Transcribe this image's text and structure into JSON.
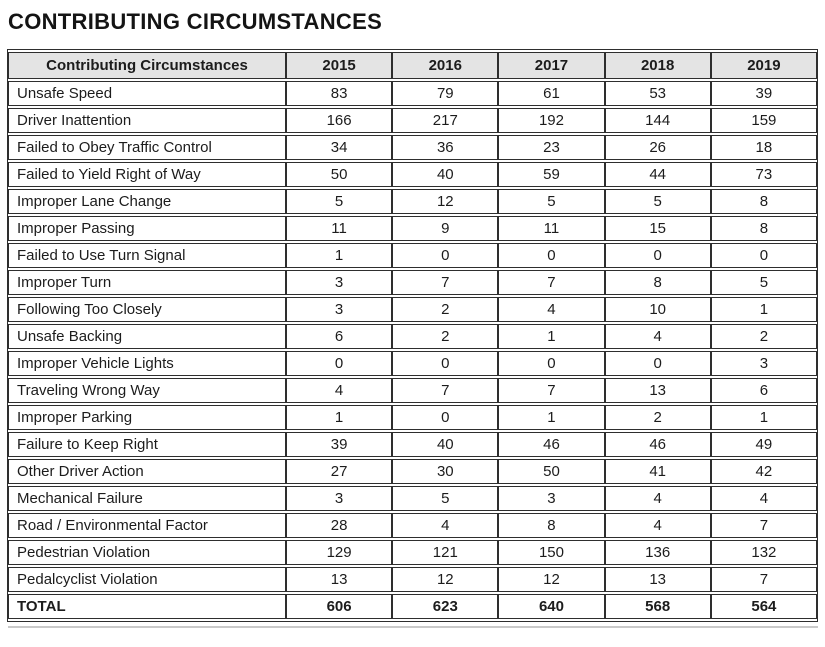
{
  "title": "CONTRIBUTING CIRCUMSTANCES",
  "table": {
    "columns": [
      "Contributing Circumstances",
      "2015",
      "2016",
      "2017",
      "2018",
      "2019"
    ],
    "rows": [
      [
        "Unsafe Speed",
        83,
        79,
        61,
        53,
        39
      ],
      [
        "Driver Inattention",
        166,
        217,
        192,
        144,
        159
      ],
      [
        "Failed to Obey Traffic Control",
        34,
        36,
        23,
        26,
        18
      ],
      [
        "Failed to Yield Right of Way",
        50,
        40,
        59,
        44,
        73
      ],
      [
        "Improper Lane Change",
        5,
        12,
        5,
        5,
        8
      ],
      [
        "Improper Passing",
        11,
        9,
        11,
        15,
        8
      ],
      [
        "Failed to Use Turn Signal",
        1,
        0,
        0,
        0,
        0
      ],
      [
        "Improper Turn",
        3,
        7,
        7,
        8,
        5
      ],
      [
        "Following Too Closely",
        3,
        2,
        4,
        10,
        1
      ],
      [
        "Unsafe Backing",
        6,
        2,
        1,
        4,
        2
      ],
      [
        "Improper Vehicle Lights",
        0,
        0,
        0,
        0,
        3
      ],
      [
        "Traveling Wrong Way",
        4,
        7,
        7,
        13,
        6
      ],
      [
        "Improper Parking",
        1,
        0,
        1,
        2,
        1
      ],
      [
        "Failure to Keep Right",
        39,
        40,
        46,
        46,
        49
      ],
      [
        "Other Driver Action",
        27,
        30,
        50,
        41,
        42
      ],
      [
        "Mechanical Failure",
        3,
        5,
        3,
        4,
        4
      ],
      [
        "Road / Environmental Factor",
        28,
        4,
        8,
        4,
        7
      ],
      [
        "Pedestrian Violation",
        129,
        121,
        150,
        136,
        132
      ],
      [
        "Pedalcyclist Violation",
        13,
        12,
        12,
        13,
        7
      ]
    ],
    "total_row": [
      "TOTAL",
      606,
      623,
      640,
      568,
      564
    ]
  },
  "colors": {
    "header_bg": "#e4e4e4",
    "border": "#2e2e2e",
    "text": "#1c1c1c",
    "shadow": "#c9c9c9"
  }
}
